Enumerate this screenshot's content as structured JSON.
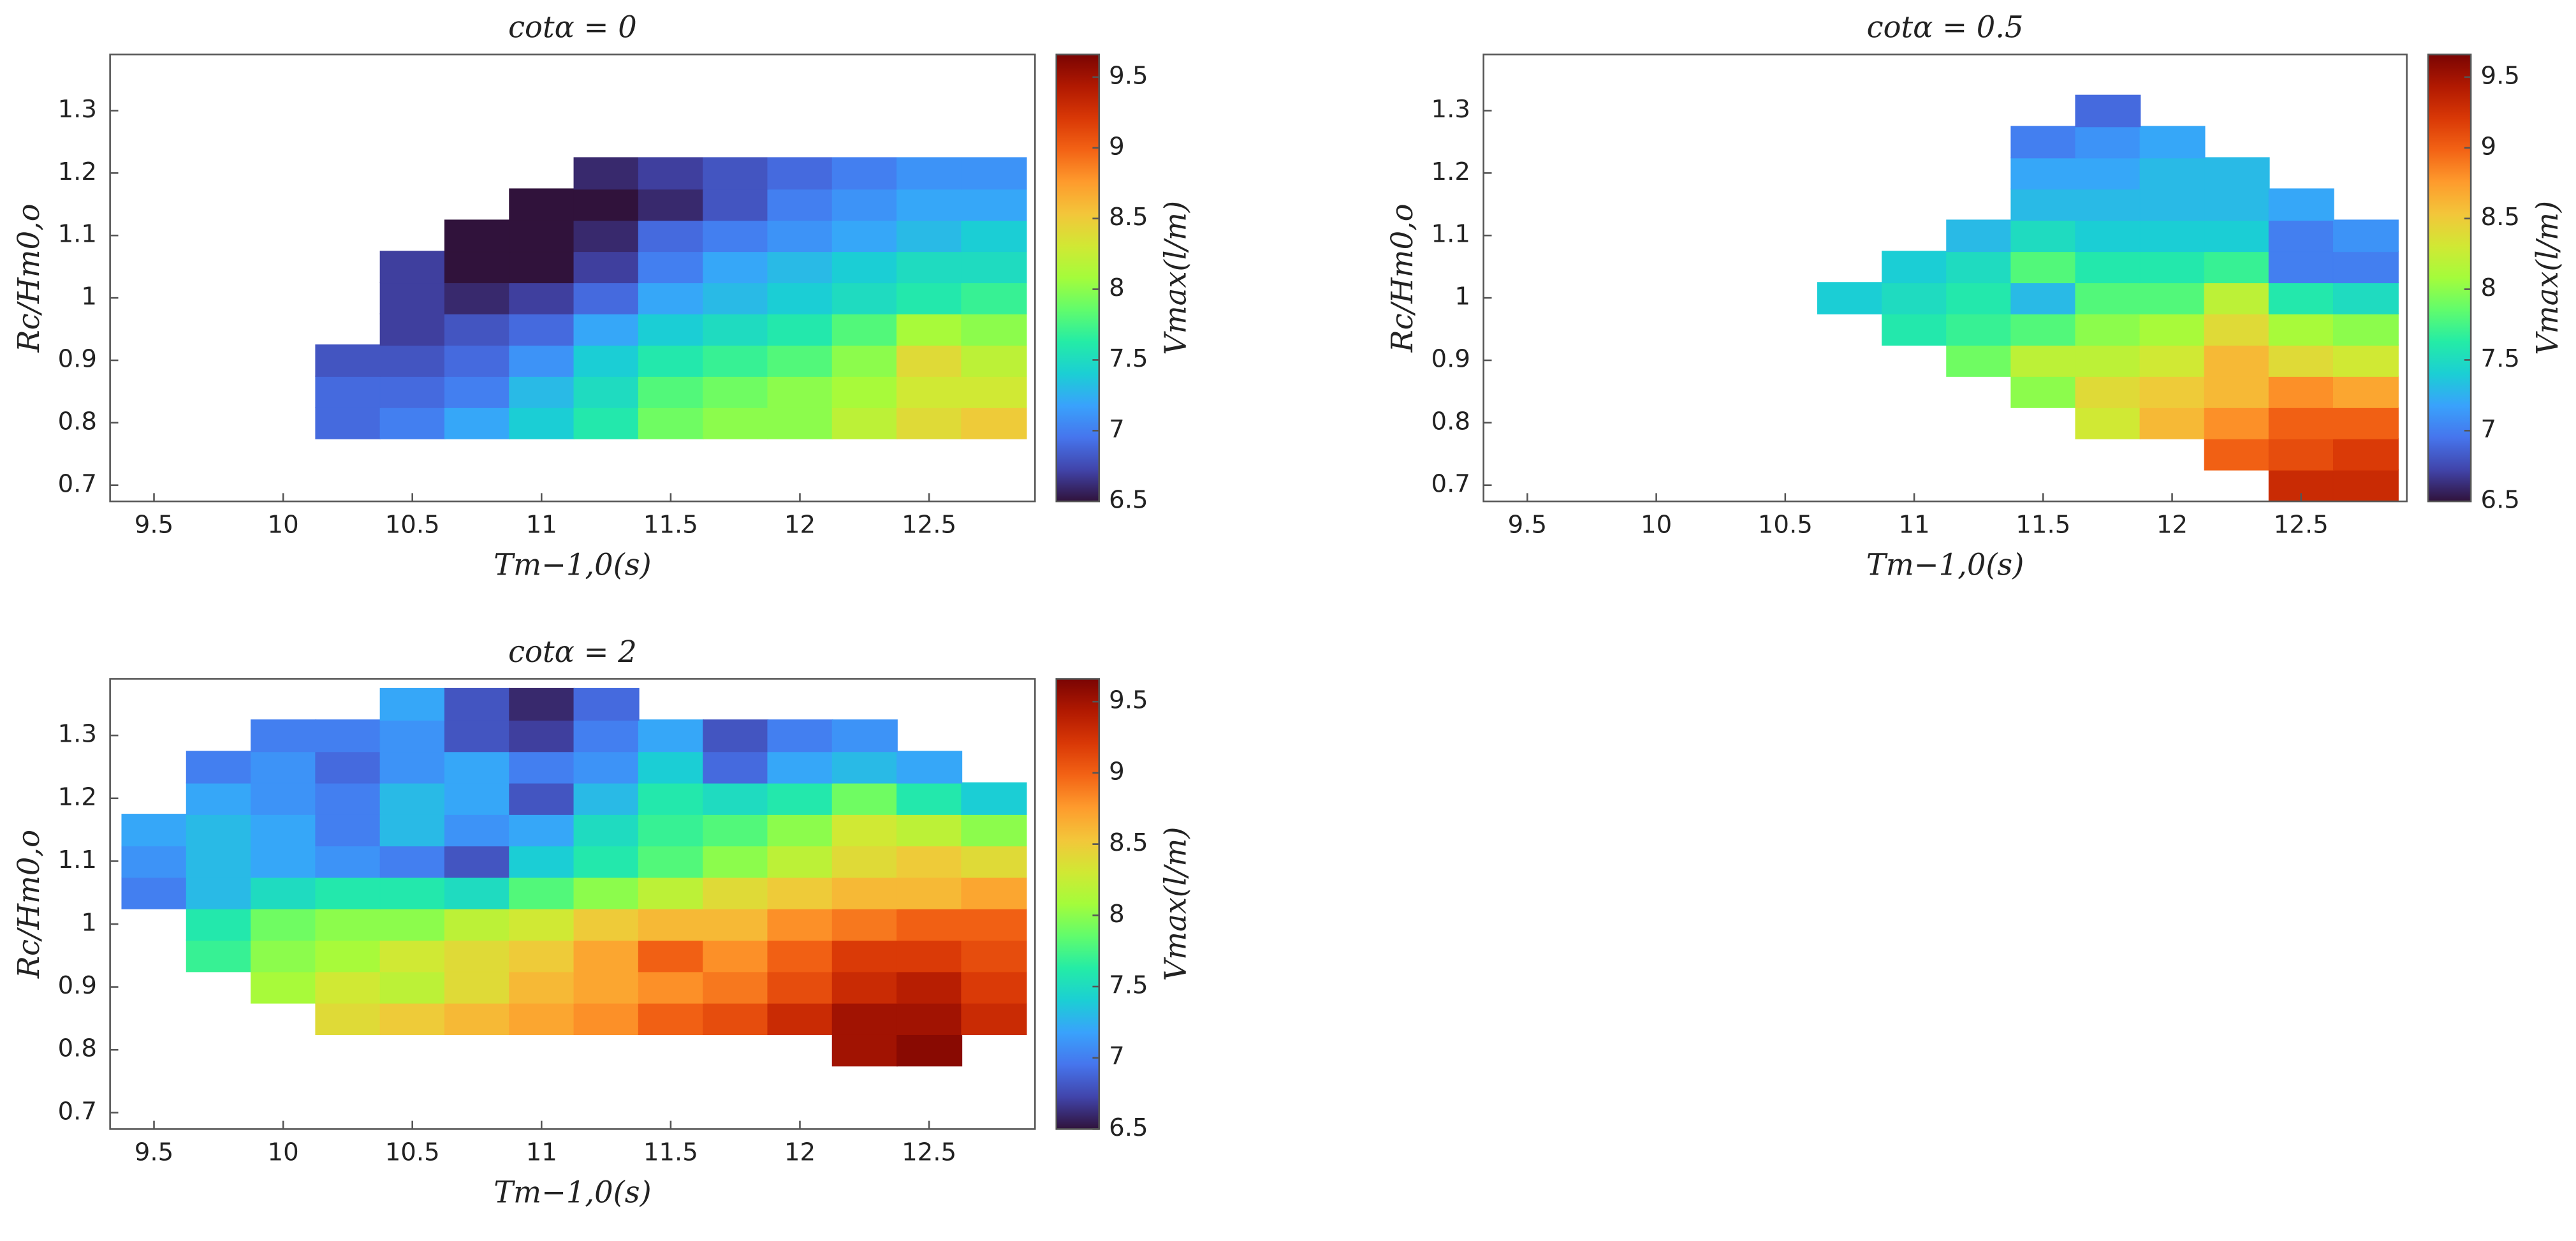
{
  "chart_data": [
    {
      "type": "heatmap",
      "title": "cotα = 0",
      "x_label": "Tm−1,0(s)",
      "y_label": "Rc/Hm0,o",
      "colorbar_label": "Vmax(l/m)",
      "x": [
        9.5,
        9.75,
        10,
        10.25,
        10.5,
        10.75,
        11,
        11.25,
        11.5,
        11.75,
        12,
        12.25,
        12.5,
        12.75
      ],
      "y": [
        0.7,
        0.75,
        0.8,
        0.85,
        0.9,
        0.95,
        1.0,
        1.05,
        1.1,
        1.15,
        1.2,
        1.25,
        1.3,
        1.35
      ],
      "z": [
        [
          null,
          null,
          null,
          null,
          null,
          null,
          null,
          null,
          null,
          null,
          null,
          null,
          null,
          null
        ],
        [
          null,
          null,
          null,
          null,
          null,
          null,
          null,
          null,
          null,
          null,
          null,
          null,
          null,
          null
        ],
        [
          null,
          null,
          null,
          6.9,
          7.0,
          7.2,
          7.4,
          7.6,
          7.9,
          8.0,
          8.0,
          8.2,
          8.4,
          8.5
        ],
        [
          null,
          null,
          null,
          6.9,
          6.9,
          7.0,
          7.3,
          7.5,
          7.8,
          7.9,
          8.0,
          8.1,
          8.3,
          8.3
        ],
        [
          null,
          null,
          null,
          6.8,
          6.8,
          6.9,
          7.1,
          7.4,
          7.6,
          7.7,
          7.8,
          8.0,
          8.4,
          8.2
        ],
        [
          null,
          null,
          null,
          null,
          6.7,
          6.8,
          6.9,
          7.2,
          7.4,
          7.5,
          7.6,
          7.8,
          8.1,
          8.0
        ],
        [
          null,
          null,
          null,
          null,
          6.7,
          6.6,
          6.7,
          6.9,
          7.2,
          7.3,
          7.4,
          7.5,
          7.6,
          7.7
        ],
        [
          null,
          null,
          null,
          null,
          6.7,
          6.5,
          6.5,
          6.7,
          7.0,
          7.2,
          7.3,
          7.4,
          7.5,
          7.5
        ],
        [
          null,
          null,
          null,
          null,
          null,
          6.5,
          6.5,
          6.6,
          6.9,
          7.0,
          7.1,
          7.2,
          7.3,
          7.4
        ],
        [
          null,
          null,
          null,
          null,
          null,
          null,
          6.5,
          6.5,
          6.6,
          6.8,
          7.0,
          7.1,
          7.2,
          7.2
        ],
        [
          null,
          null,
          null,
          null,
          null,
          null,
          null,
          6.6,
          6.7,
          6.8,
          6.9,
          7.0,
          7.1,
          7.1
        ],
        [
          null,
          null,
          null,
          null,
          null,
          null,
          null,
          null,
          null,
          null,
          null,
          null,
          null,
          null
        ],
        [
          null,
          null,
          null,
          null,
          null,
          null,
          null,
          null,
          null,
          null,
          null,
          null,
          null,
          null
        ],
        [
          null,
          null,
          null,
          null,
          null,
          null,
          null,
          null,
          null,
          null,
          null,
          null,
          null,
          null
        ]
      ],
      "xlim": [
        9.33,
        12.91
      ],
      "ylim": [
        0.674,
        1.39
      ],
      "xticks": [
        9.5,
        10,
        10.5,
        11,
        11.5,
        12,
        12.5
      ],
      "yticks": [
        0.7,
        0.8,
        0.9,
        1,
        1.1,
        1.2,
        1.3
      ],
      "clim": [
        6.5,
        9.66
      ],
      "cticks": [
        6.5,
        7,
        7.5,
        8,
        8.5,
        9,
        9.5
      ],
      "colormap": [
        "#30123b",
        "#4145ab",
        "#4675ed",
        "#39a2fc",
        "#1bcfd4",
        "#24eca6",
        "#61fc6c",
        "#a4fc3b",
        "#d1e834",
        "#f3c63a",
        "#fe9b2d",
        "#f36315",
        "#d93806",
        "#b11901",
        "#7a0403"
      ]
    },
    {
      "type": "heatmap",
      "title": "cotα = 0.5",
      "x_label": "Tm−1,0(s)",
      "y_label": "Rc/Hm0,o",
      "colorbar_label": "Vmax(l/m)",
      "x": [
        9.5,
        9.75,
        10,
        10.25,
        10.5,
        10.75,
        11,
        11.25,
        11.5,
        11.75,
        12,
        12.25,
        12.5,
        12.75
      ],
      "y": [
        0.7,
        0.75,
        0.8,
        0.85,
        0.9,
        0.95,
        1.0,
        1.05,
        1.1,
        1.15,
        1.2,
        1.25,
        1.3,
        1.35
      ],
      "z": [
        [
          null,
          null,
          null,
          null,
          null,
          null,
          null,
          null,
          null,
          null,
          null,
          null,
          9.3,
          9.3
        ],
        [
          null,
          null,
          null,
          null,
          null,
          null,
          null,
          null,
          null,
          null,
          null,
          9.0,
          9.1,
          9.2
        ],
        [
          null,
          null,
          null,
          null,
          null,
          null,
          null,
          null,
          null,
          8.3,
          8.6,
          8.8,
          9.0,
          9.0
        ],
        [
          null,
          null,
          null,
          null,
          null,
          null,
          null,
          null,
          8.0,
          8.4,
          8.5,
          8.6,
          8.8,
          8.7
        ],
        [
          null,
          null,
          null,
          null,
          null,
          null,
          null,
          7.9,
          8.2,
          8.2,
          8.3,
          8.6,
          8.4,
          8.3
        ],
        [
          null,
          null,
          null,
          null,
          null,
          null,
          7.6,
          7.7,
          7.8,
          8.0,
          8.1,
          8.4,
          8.1,
          8.0
        ],
        [
          null,
          null,
          null,
          null,
          null,
          7.4,
          7.5,
          7.6,
          7.3,
          7.8,
          7.8,
          8.2,
          7.6,
          7.5
        ],
        [
          null,
          null,
          null,
          null,
          null,
          null,
          7.4,
          7.5,
          7.8,
          7.6,
          7.6,
          7.7,
          7.0,
          7.0
        ],
        [
          null,
          null,
          null,
          null,
          null,
          null,
          null,
          7.3,
          7.5,
          7.4,
          7.4,
          7.4,
          7.0,
          7.1
        ],
        [
          null,
          null,
          null,
          null,
          null,
          null,
          null,
          null,
          7.3,
          7.3,
          7.3,
          7.3,
          7.2,
          null
        ],
        [
          null,
          null,
          null,
          null,
          null,
          null,
          null,
          null,
          7.2,
          7.2,
          7.3,
          7.3,
          null,
          null
        ],
        [
          null,
          null,
          null,
          null,
          null,
          null,
          null,
          null,
          7.0,
          7.1,
          7.2,
          null,
          null,
          null
        ],
        [
          null,
          null,
          null,
          null,
          null,
          null,
          null,
          null,
          null,
          6.9,
          null,
          null,
          null,
          null
        ],
        [
          null,
          null,
          null,
          null,
          null,
          null,
          null,
          null,
          null,
          null,
          null,
          null,
          null,
          null
        ]
      ],
      "xlim": [
        9.33,
        12.91
      ],
      "ylim": [
        0.674,
        1.39
      ],
      "xticks": [
        9.5,
        10,
        10.5,
        11,
        11.5,
        12,
        12.5
      ],
      "yticks": [
        0.7,
        0.8,
        0.9,
        1,
        1.1,
        1.2,
        1.3
      ],
      "clim": [
        6.5,
        9.66
      ],
      "cticks": [
        6.5,
        7,
        7.5,
        8,
        8.5,
        9,
        9.5
      ],
      "colormap": [
        "#30123b",
        "#4145ab",
        "#4675ed",
        "#39a2fc",
        "#1bcfd4",
        "#24eca6",
        "#61fc6c",
        "#a4fc3b",
        "#d1e834",
        "#f3c63a",
        "#fe9b2d",
        "#f36315",
        "#d93806",
        "#b11901",
        "#7a0403"
      ]
    },
    {
      "type": "heatmap",
      "title": "cotα = 2",
      "x_label": "Tm−1,0(s)",
      "y_label": "Rc/Hm0,o",
      "colorbar_label": "Vmax(l/m)",
      "x": [
        9.5,
        9.75,
        10,
        10.25,
        10.5,
        10.75,
        11,
        11.25,
        11.5,
        11.75,
        12,
        12.25,
        12.5,
        12.75
      ],
      "y": [
        0.7,
        0.75,
        0.8,
        0.85,
        0.9,
        0.95,
        1.0,
        1.05,
        1.1,
        1.15,
        1.2,
        1.25,
        1.3,
        1.35
      ],
      "z": [
        [
          null,
          null,
          null,
          null,
          null,
          null,
          null,
          null,
          null,
          null,
          null,
          null,
          null,
          null
        ],
        [
          null,
          null,
          null,
          null,
          null,
          null,
          null,
          null,
          null,
          null,
          null,
          null,
          null,
          null
        ],
        [
          null,
          null,
          null,
          null,
          null,
          null,
          null,
          null,
          null,
          null,
          null,
          9.5,
          9.6,
          null
        ],
        [
          null,
          null,
          null,
          8.4,
          8.5,
          8.6,
          8.7,
          8.8,
          9.0,
          9.1,
          9.3,
          9.5,
          9.5,
          9.3
        ],
        [
          null,
          null,
          8.1,
          8.3,
          8.2,
          8.4,
          8.6,
          8.7,
          8.8,
          8.9,
          9.1,
          9.3,
          9.4,
          9.2
        ],
        [
          null,
          7.7,
          8.0,
          8.1,
          8.3,
          8.4,
          8.5,
          8.7,
          9.0,
          8.8,
          9.0,
          9.2,
          9.2,
          9.1
        ],
        [
          null,
          7.6,
          7.9,
          8.0,
          8.0,
          8.2,
          8.3,
          8.5,
          8.6,
          8.6,
          8.8,
          8.9,
          9.0,
          9.0
        ],
        [
          7.0,
          7.3,
          7.5,
          7.6,
          7.6,
          7.5,
          7.8,
          8.0,
          8.2,
          8.4,
          8.5,
          8.6,
          8.6,
          8.7
        ],
        [
          7.1,
          7.3,
          7.2,
          7.1,
          7.0,
          6.8,
          7.4,
          7.6,
          7.8,
          8.0,
          8.2,
          8.4,
          8.5,
          8.4
        ],
        [
          7.2,
          7.3,
          7.2,
          7.0,
          7.3,
          7.1,
          7.2,
          7.5,
          7.7,
          7.8,
          8.0,
          8.3,
          8.2,
          8.0
        ],
        [
          null,
          7.2,
          7.1,
          7.0,
          7.3,
          7.2,
          6.8,
          7.3,
          7.6,
          7.5,
          7.6,
          7.9,
          7.6,
          7.4
        ],
        [
          null,
          7.0,
          7.1,
          6.9,
          7.1,
          7.2,
          7.0,
          7.1,
          7.4,
          6.9,
          7.2,
          7.3,
          7.2,
          null
        ],
        [
          null,
          null,
          7.0,
          7.0,
          7.1,
          6.8,
          6.7,
          7.0,
          7.2,
          6.8,
          7.0,
          7.1,
          null,
          null
        ],
        [
          null,
          null,
          null,
          null,
          7.2,
          6.8,
          6.6,
          6.9,
          null,
          null,
          null,
          null,
          null,
          null
        ]
      ],
      "xlim": [
        9.33,
        12.91
      ],
      "ylim": [
        0.674,
        1.39
      ],
      "xticks": [
        9.5,
        10,
        10.5,
        11,
        11.5,
        12,
        12.5
      ],
      "yticks": [
        0.7,
        0.8,
        0.9,
        1,
        1.1,
        1.2,
        1.3
      ],
      "clim": [
        6.5,
        9.66
      ],
      "cticks": [
        6.5,
        7,
        7.5,
        8,
        8.5,
        9,
        9.5
      ],
      "colormap": [
        "#30123b",
        "#4145ab",
        "#4675ed",
        "#39a2fc",
        "#1bcfd4",
        "#24eca6",
        "#61fc6c",
        "#a4fc3b",
        "#d1e834",
        "#f3c63a",
        "#fe9b2d",
        "#f36315",
        "#d93806",
        "#b11901",
        "#7a0403"
      ]
    }
  ]
}
